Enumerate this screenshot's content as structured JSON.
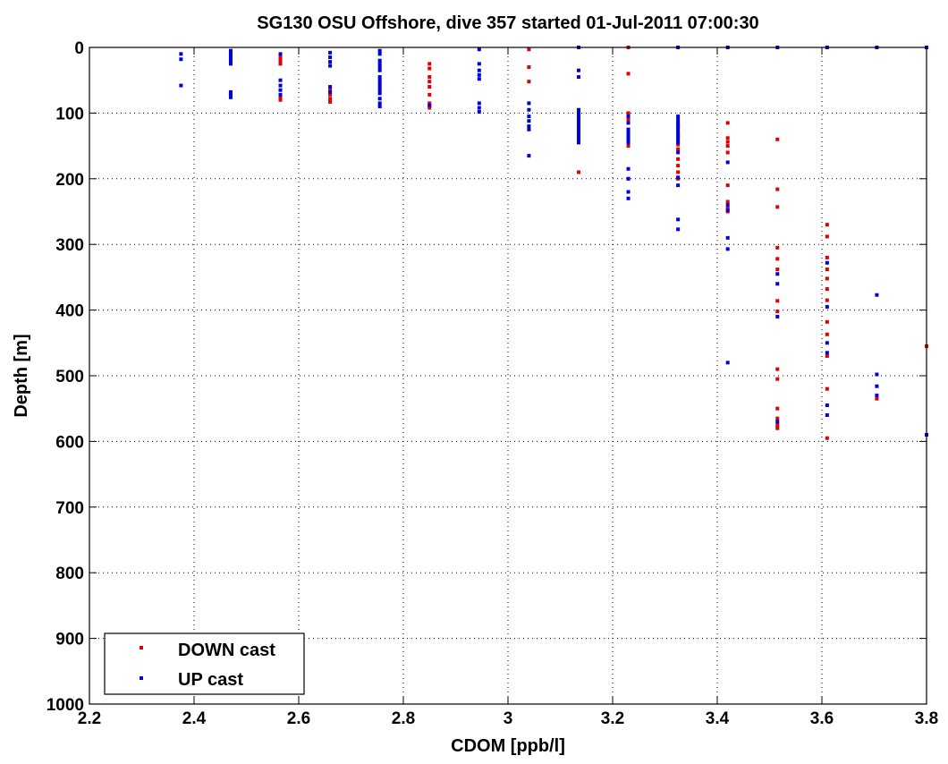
{
  "chart_data": {
    "type": "scatter",
    "title": "SG130 OSU Offshore, dive 357 started 01-Jul-2011 07:00:30",
    "xlabel": "CDOM [ppb/l]",
    "ylabel": "Depth [m]",
    "xlim": [
      2.2,
      3.8
    ],
    "ylim": [
      0,
      1000
    ],
    "y_reversed": true,
    "grid": true,
    "x_ticks": [
      "2.2",
      "2.4",
      "2.6",
      "2.8",
      "3",
      "3.2",
      "3.4",
      "3.6",
      "3.8"
    ],
    "y_ticks": [
      "0",
      "100",
      "200",
      "300",
      "400",
      "500",
      "600",
      "700",
      "800",
      "900",
      "1000"
    ],
    "legend_position": "bottom-left",
    "series": [
      {
        "name": "DOWN cast",
        "color": "#e00000",
        "points": [
          [
            2.565,
            15
          ],
          [
            2.565,
            20
          ],
          [
            2.565,
            25
          ],
          [
            2.565,
            75
          ],
          [
            2.565,
            80
          ],
          [
            2.66,
            65
          ],
          [
            2.66,
            72
          ],
          [
            2.66,
            78
          ],
          [
            2.66,
            83
          ],
          [
            2.85,
            25
          ],
          [
            2.85,
            32
          ],
          [
            2.85,
            45
          ],
          [
            2.85,
            52
          ],
          [
            2.85,
            60
          ],
          [
            2.85,
            72
          ],
          [
            2.85,
            85
          ],
          [
            2.85,
            92
          ],
          [
            3.04,
            3
          ],
          [
            3.04,
            30
          ],
          [
            3.04,
            52
          ],
          [
            3.135,
            190
          ],
          [
            3.23,
            0
          ],
          [
            3.23,
            40
          ],
          [
            3.23,
            100
          ],
          [
            3.23,
            110
          ],
          [
            3.23,
            125
          ],
          [
            3.23,
            140
          ],
          [
            3.23,
            150
          ],
          [
            3.23,
            200
          ],
          [
            3.325,
            120
          ],
          [
            3.325,
            135
          ],
          [
            3.325,
            148
          ],
          [
            3.325,
            155
          ],
          [
            3.325,
            170
          ],
          [
            3.325,
            180
          ],
          [
            3.325,
            190
          ],
          [
            3.325,
            200
          ],
          [
            3.42,
            115
          ],
          [
            3.42,
            138
          ],
          [
            3.42,
            144
          ],
          [
            3.42,
            150
          ],
          [
            3.42,
            160
          ],
          [
            3.42,
            210
          ],
          [
            3.42,
            235
          ],
          [
            3.42,
            245
          ],
          [
            3.42,
            250
          ],
          [
            3.515,
            140
          ],
          [
            3.515,
            216
          ],
          [
            3.515,
            243
          ],
          [
            3.515,
            305
          ],
          [
            3.515,
            322
          ],
          [
            3.515,
            338
          ],
          [
            3.515,
            386
          ],
          [
            3.515,
            402
          ],
          [
            3.515,
            490
          ],
          [
            3.515,
            505
          ],
          [
            3.515,
            550
          ],
          [
            3.515,
            565
          ],
          [
            3.515,
            575
          ],
          [
            3.515,
            580
          ],
          [
            3.61,
            270
          ],
          [
            3.61,
            288
          ],
          [
            3.61,
            320
          ],
          [
            3.61,
            338
          ],
          [
            3.61,
            352
          ],
          [
            3.61,
            368
          ],
          [
            3.61,
            385
          ],
          [
            3.61,
            418
          ],
          [
            3.61,
            437
          ],
          [
            3.61,
            470
          ],
          [
            3.61,
            520
          ],
          [
            3.61,
            595
          ],
          [
            3.705,
            535
          ],
          [
            3.8,
            455
          ]
        ]
      },
      {
        "name": "UP cast",
        "color": "#0000dd",
        "points": [
          [
            2.375,
            10
          ],
          [
            2.375,
            18
          ],
          [
            2.375,
            58
          ],
          [
            2.47,
            5
          ],
          [
            2.47,
            10
          ],
          [
            2.47,
            15
          ],
          [
            2.47,
            20
          ],
          [
            2.47,
            25
          ],
          [
            2.47,
            68
          ],
          [
            2.47,
            72
          ],
          [
            2.47,
            76
          ],
          [
            2.565,
            10
          ],
          [
            2.565,
            50
          ],
          [
            2.565,
            58
          ],
          [
            2.565,
            65
          ],
          [
            2.565,
            72
          ],
          [
            2.66,
            8
          ],
          [
            2.66,
            15
          ],
          [
            2.66,
            22
          ],
          [
            2.66,
            28
          ],
          [
            2.66,
            60
          ],
          [
            2.66,
            68
          ],
          [
            2.755,
            5
          ],
          [
            2.755,
            10
          ],
          [
            2.755,
            20
          ],
          [
            2.755,
            25
          ],
          [
            2.755,
            30
          ],
          [
            2.755,
            35
          ],
          [
            2.755,
            45
          ],
          [
            2.755,
            50
          ],
          [
            2.755,
            55
          ],
          [
            2.755,
            60
          ],
          [
            2.755,
            65
          ],
          [
            2.755,
            70
          ],
          [
            2.755,
            78
          ],
          [
            2.755,
            85
          ],
          [
            2.755,
            90
          ],
          [
            2.85,
            88
          ],
          [
            2.945,
            3
          ],
          [
            2.945,
            25
          ],
          [
            2.945,
            35
          ],
          [
            2.945,
            42
          ],
          [
            2.945,
            48
          ],
          [
            2.945,
            85
          ],
          [
            2.945,
            92
          ],
          [
            2.945,
            98
          ],
          [
            3.04,
            85
          ],
          [
            3.04,
            95
          ],
          [
            3.04,
            105
          ],
          [
            3.04,
            112
          ],
          [
            3.04,
            120
          ],
          [
            3.04,
            125
          ],
          [
            3.04,
            165
          ],
          [
            3.135,
            0
          ],
          [
            3.135,
            35
          ],
          [
            3.135,
            45
          ],
          [
            3.135,
            95
          ],
          [
            3.135,
            100
          ],
          [
            3.135,
            105
          ],
          [
            3.135,
            110
          ],
          [
            3.135,
            115
          ],
          [
            3.135,
            120
          ],
          [
            3.135,
            125
          ],
          [
            3.135,
            130
          ],
          [
            3.135,
            135
          ],
          [
            3.135,
            140
          ],
          [
            3.135,
            145
          ],
          [
            3.23,
            105
          ],
          [
            3.23,
            115
          ],
          [
            3.23,
            125
          ],
          [
            3.23,
            130
          ],
          [
            3.23,
            135
          ],
          [
            3.23,
            140
          ],
          [
            3.23,
            145
          ],
          [
            3.23,
            185
          ],
          [
            3.23,
            200
          ],
          [
            3.23,
            220
          ],
          [
            3.23,
            230
          ],
          [
            3.325,
            0
          ],
          [
            3.325,
            105
          ],
          [
            3.325,
            110
          ],
          [
            3.325,
            115
          ],
          [
            3.325,
            120
          ],
          [
            3.325,
            125
          ],
          [
            3.325,
            130
          ],
          [
            3.325,
            135
          ],
          [
            3.325,
            140
          ],
          [
            3.325,
            145
          ],
          [
            3.325,
            160
          ],
          [
            3.325,
            198
          ],
          [
            3.325,
            210
          ],
          [
            3.325,
            262
          ],
          [
            3.325,
            277
          ],
          [
            3.42,
            0
          ],
          [
            3.42,
            175
          ],
          [
            3.42,
            240
          ],
          [
            3.42,
            248
          ],
          [
            3.42,
            290
          ],
          [
            3.42,
            307
          ],
          [
            3.42,
            480
          ],
          [
            3.515,
            0
          ],
          [
            3.515,
            345
          ],
          [
            3.515,
            360
          ],
          [
            3.515,
            410
          ],
          [
            3.515,
            570
          ],
          [
            3.61,
            0
          ],
          [
            3.61,
            328
          ],
          [
            3.61,
            395
          ],
          [
            3.61,
            450
          ],
          [
            3.61,
            465
          ],
          [
            3.61,
            545
          ],
          [
            3.61,
            560
          ],
          [
            3.705,
            0
          ],
          [
            3.705,
            377
          ],
          [
            3.705,
            498
          ],
          [
            3.705,
            516
          ],
          [
            3.705,
            530
          ],
          [
            3.8,
            0
          ],
          [
            3.8,
            590
          ]
        ]
      }
    ]
  }
}
